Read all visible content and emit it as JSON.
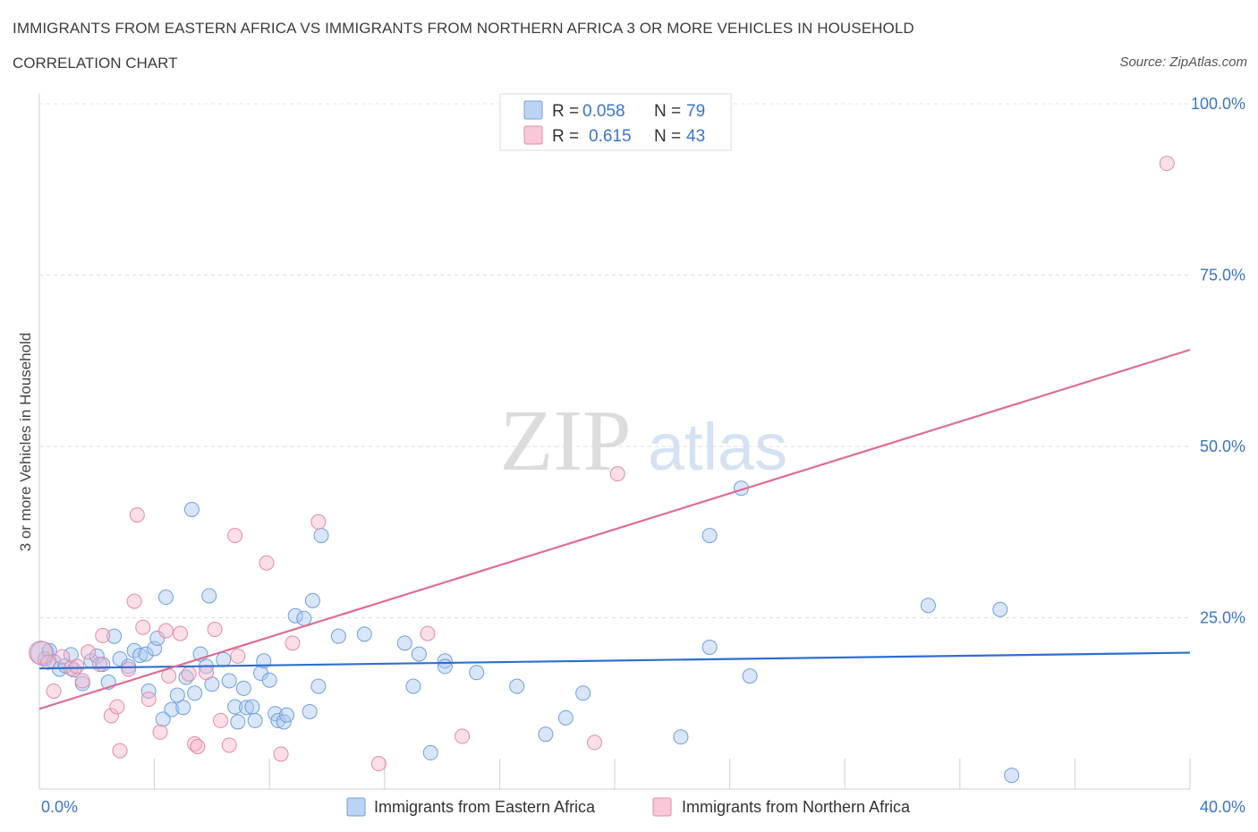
{
  "header": {
    "title": "IMMIGRANTS FROM EASTERN AFRICA VS IMMIGRANTS FROM NORTHERN AFRICA 3 OR MORE VEHICLES IN HOUSEHOLD",
    "subtitle": "CORRELATION CHART",
    "source": "Source: ZipAtlas.com"
  },
  "watermark": {
    "zip": "ZIP",
    "atlas": "atlas"
  },
  "colors": {
    "blue": "#3b78d0",
    "blue_fill": "#a9c8f0",
    "pink": "#e06b93",
    "pink_fill": "#f3b6cb",
    "axis_text": "#3a74c9",
    "grid": "#d9d9d9"
  },
  "stats": [
    {
      "r_label": "R =",
      "r_value": "0.058",
      "n_label": "N =",
      "n_value": "79"
    },
    {
      "r_label": "R =",
      "r_value": "0.615",
      "n_label": "N =",
      "n_value": "43"
    }
  ],
  "chart_data": {
    "type": "scatter",
    "title": "IMMIGRANTS FROM EASTERN AFRICA VS IMMIGRANTS FROM NORTHERN AFRICA 3 OR MORE VEHICLES IN HOUSEHOLD",
    "xlabel": "",
    "ylabel": "3 or more Vehicles in Household",
    "xlim": [
      0,
      40
    ],
    "ylim": [
      0,
      100
    ],
    "x_tick_labels": [
      "0.0%",
      "40.0%"
    ],
    "y_ticks": [
      25,
      50,
      75,
      100
    ],
    "y_tick_labels": [
      "25.0%",
      "50.0%",
      "75.0%",
      "100.0%"
    ],
    "legend_position": "bottom",
    "series": [
      {
        "name": "Immigrants from Eastern Africa",
        "color": "#3b78d0",
        "trend": [
          [
            0,
            17.6
          ],
          [
            40,
            19.9
          ]
        ],
        "points": [
          [
            0.1,
            19.8
          ],
          [
            0.2,
            19.0
          ],
          [
            0.35,
            20.2
          ],
          [
            0.5,
            18.6
          ],
          [
            0.7,
            17.5
          ],
          [
            0.9,
            18.0
          ],
          [
            1.1,
            19.6
          ],
          [
            1.2,
            17.4
          ],
          [
            1.5,
            15.4
          ],
          [
            1.8,
            18.7
          ],
          [
            2.0,
            19.4
          ],
          [
            2.2,
            18.2
          ],
          [
            2.4,
            15.6
          ],
          [
            2.6,
            22.3
          ],
          [
            2.8,
            19.0
          ],
          [
            3.1,
            17.9
          ],
          [
            3.3,
            20.2
          ],
          [
            3.5,
            19.5
          ],
          [
            3.7,
            19.7
          ],
          [
            3.8,
            14.3
          ],
          [
            4.0,
            20.5
          ],
          [
            4.1,
            22.0
          ],
          [
            4.3,
            10.2
          ],
          [
            4.4,
            28.0
          ],
          [
            4.6,
            11.6
          ],
          [
            4.8,
            13.7
          ],
          [
            5.0,
            11.9
          ],
          [
            5.1,
            16.3
          ],
          [
            5.3,
            40.8
          ],
          [
            5.4,
            14.0
          ],
          [
            5.6,
            19.7
          ],
          [
            5.8,
            17.9
          ],
          [
            5.9,
            28.2
          ],
          [
            6.0,
            15.3
          ],
          [
            6.4,
            18.9
          ],
          [
            6.6,
            15.8
          ],
          [
            6.8,
            12.0
          ],
          [
            6.9,
            9.8
          ],
          [
            7.1,
            14.7
          ],
          [
            7.2,
            11.9
          ],
          [
            7.4,
            12.0
          ],
          [
            7.5,
            10.0
          ],
          [
            7.7,
            16.9
          ],
          [
            7.8,
            18.7
          ],
          [
            8.0,
            15.9
          ],
          [
            8.2,
            11.0
          ],
          [
            8.3,
            10.0
          ],
          [
            8.5,
            9.8
          ],
          [
            8.6,
            10.8
          ],
          [
            8.9,
            25.3
          ],
          [
            9.2,
            24.9
          ],
          [
            9.4,
            11.3
          ],
          [
            9.5,
            27.5
          ],
          [
            9.7,
            15.0
          ],
          [
            9.8,
            37.0
          ],
          [
            10.4,
            22.3
          ],
          [
            11.3,
            22.6
          ],
          [
            12.7,
            21.3
          ],
          [
            13.0,
            15.0
          ],
          [
            13.2,
            19.7
          ],
          [
            13.6,
            5.3
          ],
          [
            14.1,
            18.7
          ],
          [
            14.1,
            17.9
          ],
          [
            15.2,
            17.0
          ],
          [
            16.6,
            15.0
          ],
          [
            17.6,
            8.0
          ],
          [
            18.3,
            10.4
          ],
          [
            18.9,
            14.0
          ],
          [
            22.3,
            7.6
          ],
          [
            23.3,
            20.7
          ],
          [
            23.3,
            37.0
          ],
          [
            24.7,
            16.5
          ],
          [
            24.4,
            43.9
          ],
          [
            30.9,
            26.8
          ],
          [
            33.4,
            26.2
          ],
          [
            33.8,
            2.0
          ]
        ]
      },
      {
        "name": "Immigrants from Northern Africa",
        "color": "#e06b93",
        "trend": [
          [
            0,
            11.7
          ],
          [
            40,
            64.1
          ]
        ],
        "points": [
          [
            0.05,
            19.9
          ],
          [
            0.3,
            18.5
          ],
          [
            0.5,
            14.3
          ],
          [
            0.8,
            19.3
          ],
          [
            1.1,
            17.6
          ],
          [
            1.3,
            17.9
          ],
          [
            1.5,
            15.8
          ],
          [
            1.7,
            20.0
          ],
          [
            2.1,
            18.2
          ],
          [
            2.2,
            22.4
          ],
          [
            2.5,
            10.7
          ],
          [
            2.7,
            12.0
          ],
          [
            2.8,
            5.6
          ],
          [
            3.1,
            17.5
          ],
          [
            3.3,
            27.4
          ],
          [
            3.4,
            40.0
          ],
          [
            3.6,
            23.6
          ],
          [
            3.8,
            13.1
          ],
          [
            4.2,
            8.3
          ],
          [
            4.4,
            23.1
          ],
          [
            4.5,
            16.5
          ],
          [
            4.9,
            22.7
          ],
          [
            5.2,
            16.8
          ],
          [
            5.4,
            6.6
          ],
          [
            5.5,
            6.2
          ],
          [
            5.8,
            17.0
          ],
          [
            6.1,
            23.3
          ],
          [
            6.3,
            10.0
          ],
          [
            6.6,
            6.4
          ],
          [
            6.8,
            37.0
          ],
          [
            6.9,
            19.4
          ],
          [
            7.9,
            33.0
          ],
          [
            8.4,
            5.1
          ],
          [
            8.8,
            21.3
          ],
          [
            9.7,
            39.0
          ],
          [
            11.8,
            3.7
          ],
          [
            13.5,
            22.7
          ],
          [
            14.7,
            7.7
          ],
          [
            19.3,
            6.8
          ],
          [
            20.1,
            46.0
          ],
          [
            39.2,
            91.3
          ]
        ]
      }
    ]
  }
}
